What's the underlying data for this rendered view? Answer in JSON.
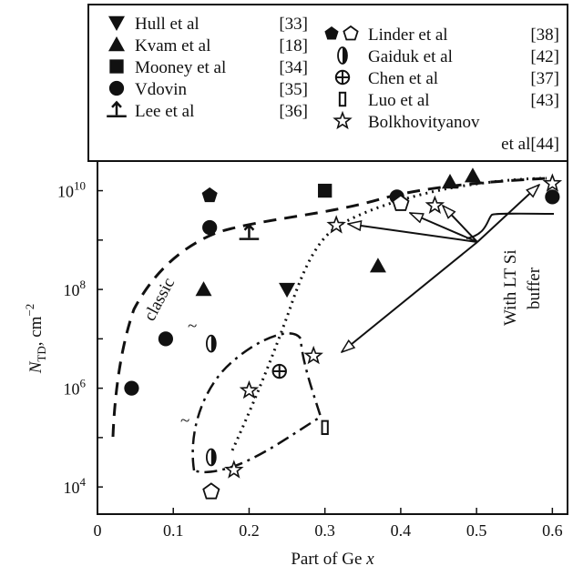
{
  "chart_data": {
    "type": "scatter",
    "xlabel": "Part of Ge x",
    "xlabel_main": "Part of Ge ",
    "xlabel_var": "x",
    "ylabel": "N_TD, cm^-2",
    "ylabel_var": "N",
    "ylabel_sub": "TD",
    "ylabel_unit": ", cm",
    "ylabel_exp": "−2",
    "xlim": [
      0,
      0.62
    ],
    "ylim_log10": [
      3.45,
      10.6
    ],
    "y_scale": "log",
    "x_ticks": [
      "0",
      "0.1",
      "0.2",
      "0.3",
      "0.4",
      "0.5",
      "0.6"
    ],
    "x_tick_values": [
      0,
      0.1,
      0.2,
      0.3,
      0.4,
      0.5,
      0.6
    ],
    "y_ticks": [
      {
        "base": "10",
        "exp": "4",
        "value": 4
      },
      {
        "base": "10",
        "exp": "6",
        "value": 6
      },
      {
        "base": "10",
        "exp": "8",
        "value": 8
      },
      {
        "base": "10",
        "exp": "10",
        "value": 10
      }
    ],
    "annotations": {
      "classic": "classic",
      "lt_line1": "With LT Si",
      "lt_line2": "buffer"
    },
    "series": [
      {
        "name": "Hull et al",
        "ref": "[33]",
        "marker": "tri-down",
        "points": [
          [
            0.25,
            100000000.0
          ]
        ]
      },
      {
        "name": "Kvam et al",
        "ref": "[18]",
        "marker": "tri-up",
        "points": [
          [
            0.14,
            100000000.0
          ],
          [
            0.37,
            300000000.0
          ],
          [
            0.465,
            15000000000.0
          ],
          [
            0.495,
            20000000000.0
          ]
        ]
      },
      {
        "name": "Mooney et al",
        "ref": "[34]",
        "marker": "square",
        "points": [
          [
            0.3,
            10000000000.0
          ]
        ]
      },
      {
        "name": "Vdovin",
        "ref": "[35]",
        "marker": "circle",
        "points": [
          [
            0.045,
            1000000.0
          ],
          [
            0.09,
            10000000.0
          ],
          [
            0.148,
            1800000000.0
          ],
          [
            0.395,
            7500000000.0
          ],
          [
            0.6,
            7500000000.0
          ]
        ]
      },
      {
        "name": "Lee et al",
        "ref": "[36]",
        "marker": "anchor",
        "points": [
          [
            0.2,
            1400000000.0
          ]
        ]
      },
      {
        "name": "Linder et al",
        "ref": "[38]",
        "marker": "pentagon",
        "points": [
          [
            0.148,
            8000000000.0
          ],
          [
            0.15,
            8000.0
          ],
          [
            0.4,
            5500000000.0
          ]
        ]
      },
      {
        "name": "Gaiduk et al",
        "ref": "[42]",
        "marker": "half-ellipse",
        "points": [
          [
            0.15,
            8000000.0
          ],
          [
            0.15,
            40000.0
          ]
        ]
      },
      {
        "name": "Chen et al",
        "ref": "[37]",
        "marker": "circle-plus",
        "points": [
          [
            0.24,
            2200000.0
          ]
        ]
      },
      {
        "name": "Luo et al",
        "ref": "[43]",
        "marker": "rect",
        "points": [
          [
            0.3,
            160000.0
          ]
        ]
      },
      {
        "name": "Bolkhovityanov et al",
        "ref": "[44]",
        "name_line1": "Bolkhovityanov",
        "name_line2": "et al",
        "marker": "star",
        "points": [
          [
            0.2,
            900000.0
          ],
          [
            0.285,
            4500000.0
          ],
          [
            0.315,
            2000000000.0
          ],
          [
            0.445,
            5000000000.0
          ],
          [
            0.6,
            14000000000.0
          ],
          [
            0.18,
            22000.0
          ]
        ]
      }
    ]
  }
}
